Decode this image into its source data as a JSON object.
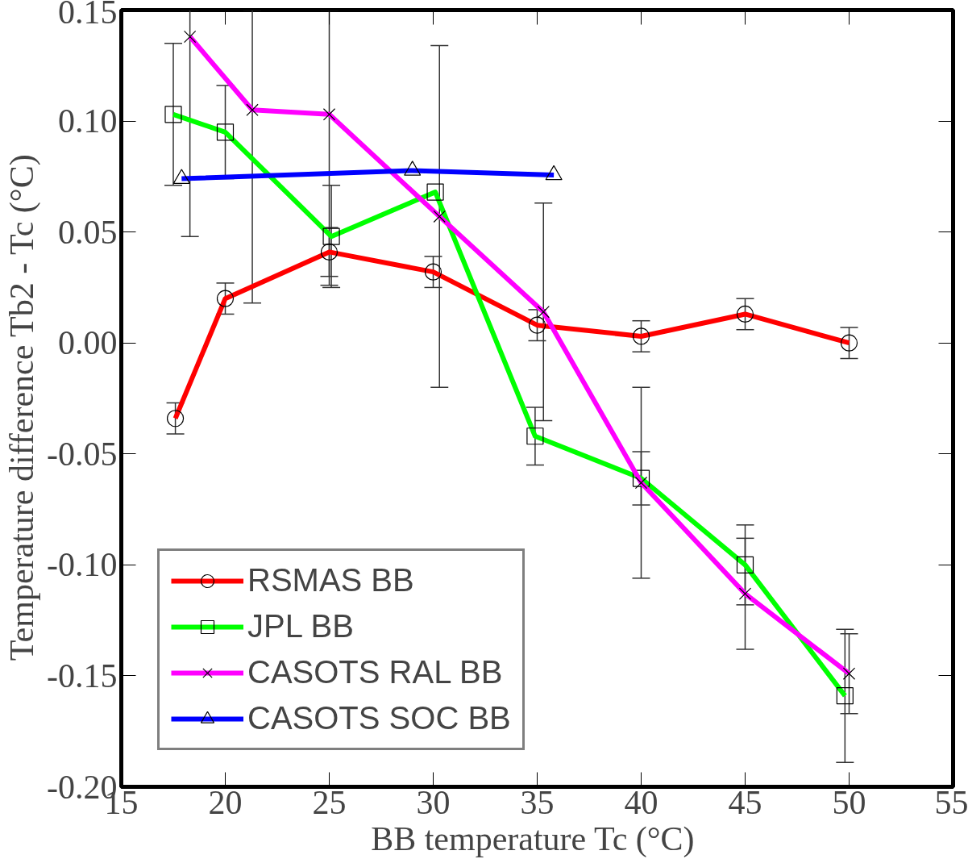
{
  "chart_data": {
    "type": "line",
    "xlabel": "BB temperature  Tc (°C)",
    "ylabel": "Temperature difference   Tb2 - Tc (°C)",
    "xlim": [
      15,
      55
    ],
    "xticks": [
      15,
      20,
      25,
      30,
      35,
      40,
      45,
      50,
      55
    ],
    "ylim": [
      -0.2,
      0.15
    ],
    "yticks": [
      {
        "value": -0.2,
        "label": "-0.20"
      },
      {
        "value": -0.15,
        "label": "-0.15"
      },
      {
        "value": -0.1,
        "label": "-0.10"
      },
      {
        "value": -0.05,
        "label": "-0.05"
      },
      {
        "value": 0,
        "label": "0.00"
      },
      {
        "value": 0.05,
        "label": "0.05"
      },
      {
        "value": 0.1,
        "label": "0.10"
      },
      {
        "value": 0.15,
        "label": "0.15"
      }
    ],
    "grid": false,
    "legend": "bottom left",
    "line_style": "solid",
    "series": [
      {
        "name": "RSMAS BB",
        "color": "#ff0000",
        "marker": "circle",
        "x": [
          17.6,
          20,
          25,
          30,
          35,
          40,
          45,
          50
        ],
        "values": [
          -0.034,
          0.02,
          0.041,
          0.032,
          0.008,
          0.003,
          0.013,
          0.0
        ],
        "errors": [
          0.007,
          0.007,
          0.011,
          0.007,
          0.007,
          0.007,
          0.007,
          0.007
        ]
      },
      {
        "name": "JPL BB",
        "color": "#00ff00",
        "marker": "square",
        "x": [
          17.5,
          20,
          25.1,
          30.1,
          34.9,
          40,
          45,
          49.8
        ],
        "values": [
          0.103,
          0.095,
          0.048,
          0.068,
          -0.042,
          -0.061,
          -0.1,
          -0.159
        ],
        "errors": [
          0.032,
          0.021,
          0.023,
          null,
          0.013,
          0.012,
          0.018,
          0.03
        ]
      },
      {
        "name": "CASOTS RAL BB",
        "color": "#ff00ff",
        "marker": "cross",
        "x": [
          18.3,
          21.3,
          25,
          30.3,
          35.3,
          40,
          45,
          50
        ],
        "values": [
          0.138,
          0.105,
          0.103,
          0.057,
          0.014,
          -0.063,
          -0.113,
          -0.149
        ],
        "errors": [
          [
            0.048,
            0.15
          ],
          [
            0.018,
            0.15
          ],
          [
            0.026,
            0.15
          ],
          0.077,
          0.049,
          0.043,
          0.025,
          0.018
        ]
      },
      {
        "name": "CASOTS SOC BB",
        "color": "#0000ff",
        "marker": "triangle",
        "x": [
          17.9,
          29.0,
          35.8
        ],
        "values": [
          0.074,
          0.0777,
          0.0757
        ]
      }
    ]
  }
}
